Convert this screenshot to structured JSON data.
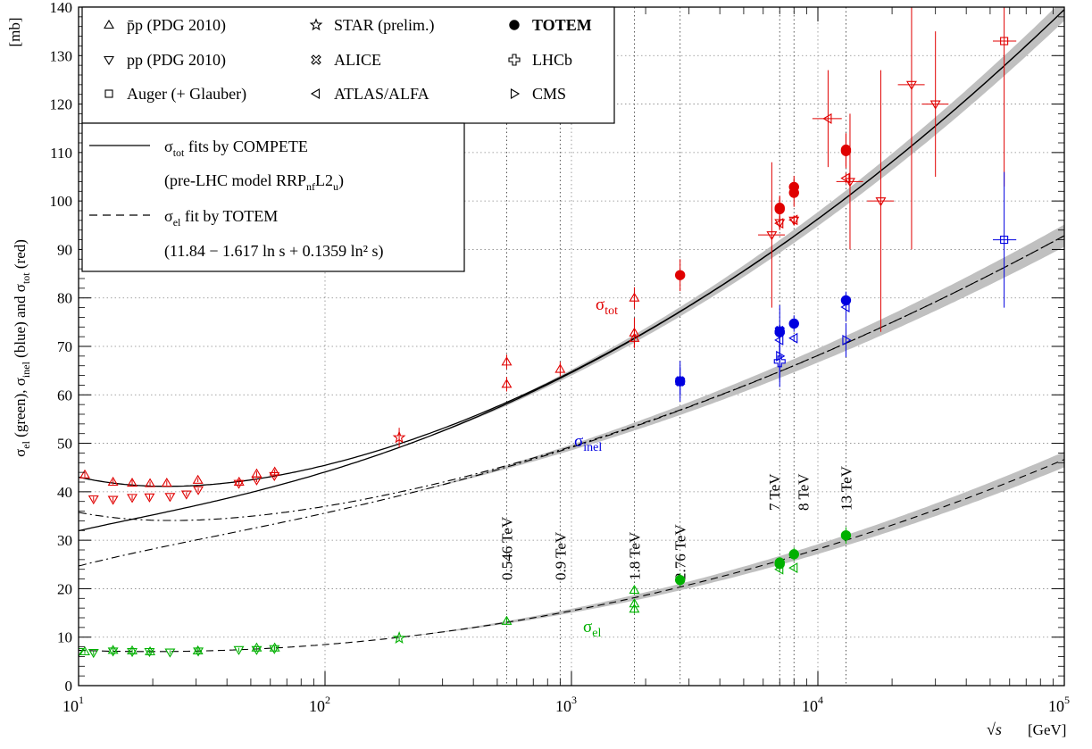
{
  "chart_data": {
    "type": "scatter",
    "x_scale": "log",
    "xlim": [
      10,
      100000
    ],
    "ylim": [
      0,
      140
    ],
    "grid": true,
    "legend_placement": "top-left",
    "x_unit_label": "[GeV]",
    "y_unit_label": "[mb]",
    "x_ticks": [
      {
        "value": 10,
        "base": "10",
        "exp": "1"
      },
      {
        "value": 100,
        "base": "10",
        "exp": "2"
      },
      {
        "value": 1000,
        "base": "10",
        "exp": "3"
      },
      {
        "value": 10000,
        "base": "10",
        "exp": "4"
      },
      {
        "value": 100000,
        "base": "10",
        "exp": "5"
      }
    ],
    "y_ticks": [
      0,
      10,
      20,
      30,
      40,
      50,
      60,
      70,
      80,
      90,
      100,
      110,
      120,
      130,
      140
    ],
    "energy_lines": [
      {
        "x": 546,
        "label": "0.546 TeV"
      },
      {
        "x": 900,
        "label": "0.9 TeV"
      },
      {
        "x": 1800,
        "label": "1.8 TeV"
      },
      {
        "x": 2760,
        "label": "2.76 TeV"
      },
      {
        "x": 7000,
        "label": "7 TeV"
      },
      {
        "x": 8000,
        "label": "8 TeV"
      },
      {
        "x": 13000,
        "label": "13 TeV"
      }
    ],
    "curve_labels": {
      "tot": "tot",
      "inel": "inel",
      "el": "el"
    },
    "legend_markers": [
      {
        "label": "p̄p (PDG 2010)",
        "marker": "triangle-up"
      },
      {
        "label": "pp (PDG 2010)",
        "marker": "triangle-down"
      },
      {
        "label": "Auger (+ Glauber)",
        "marker": "square"
      },
      {
        "label": "STAR (prelim.)",
        "marker": "star"
      },
      {
        "label": "ALICE",
        "marker": "cross-x"
      },
      {
        "label": "ATLAS/ALFA",
        "marker": "triangle-left"
      },
      {
        "label": "TOTEM",
        "marker": "filled-circle"
      },
      {
        "label": "LHCb",
        "marker": "cross-plus"
      },
      {
        "label": "CMS",
        "marker": "triangle-right"
      }
    ],
    "legend_fits": {
      "tot_fit": "fits by COMPETE",
      "tot_model": "(pre-LHC model RRP",
      "tot_model_sub": "nf",
      "tot_model_end": "L2",
      "tot_model_sub2": "u",
      "el_fit": "fit by TOTEM",
      "el_formula": "(11.84 − 1.617 ln s + 0.1359 ln² s)"
    },
    "colors": {
      "tot": "#e00000",
      "inel": "#0000e0",
      "el": "#00b000",
      "fit": "#000000",
      "band": "#c0c0c0"
    },
    "series": [
      {
        "name": "σtot TOTEM",
        "marker": "filled-circle",
        "color": "tot",
        "points": [
          [
            2760,
            84.7,
            3.3
          ],
          [
            7000,
            98.3,
            2.8
          ],
          [
            7000,
            98.6,
            2.2
          ],
          [
            8000,
            101.7,
            2.9
          ],
          [
            8000,
            102.9,
            2.3
          ],
          [
            13000,
            110.6,
            3.4
          ],
          [
            13000,
            110.3,
            3.5
          ]
        ]
      },
      {
        "name": "σtot p̄p",
        "marker": "triangle-up",
        "color": "tot",
        "points": [
          [
            10.6,
            43.5,
            0.5
          ],
          [
            13.8,
            42.0,
            0.5
          ],
          [
            16.5,
            41.8,
            0.6
          ],
          [
            19.5,
            41.7,
            0.4
          ],
          [
            22.8,
            41.8,
            0.5
          ],
          [
            30.5,
            42.4,
            0.4
          ],
          [
            44.8,
            42.0,
            0.5
          ],
          [
            52.8,
            43.7,
            0.5
          ],
          [
            62.5,
            44.1,
            0.5
          ],
          [
            546,
            66.8,
            1.5
          ],
          [
            546,
            62.2,
            1.5
          ],
          [
            900,
            65.3,
            1.5
          ],
          [
            1800,
            80.0,
            2.2
          ],
          [
            1800,
            72.8,
            3.1
          ],
          [
            1800,
            71.7,
            2.0
          ]
        ]
      },
      {
        "name": "σtot pp",
        "marker": "triangle-down",
        "color": "tot",
        "points": [
          [
            11.5,
            38.5,
            0.5
          ],
          [
            13.8,
            38.4,
            0.5
          ],
          [
            16.5,
            38.8,
            0.5
          ],
          [
            19.4,
            38.9,
            0.5
          ],
          [
            23.5,
            39.0,
            0.4
          ],
          [
            27.4,
            39.5,
            0.4
          ],
          [
            30.6,
            40.4,
            0.4
          ],
          [
            44.7,
            41.7,
            0.4
          ],
          [
            52.8,
            42.4,
            0.4
          ],
          [
            62.3,
            43.3,
            0.4
          ],
          [
            6500,
            93.0,
            15.0
          ],
          [
            7000,
            95.5,
            1.3
          ],
          [
            8000,
            96.0,
            1.0
          ],
          [
            13500,
            104.0,
            14.0
          ],
          [
            18000,
            100.0,
            27.0
          ],
          [
            24000,
            124.0,
            34.0
          ],
          [
            30000,
            120.0,
            15.0
          ]
        ]
      },
      {
        "name": "σtot Auger",
        "marker": "square",
        "color": "tot",
        "points": [
          [
            57000,
            133.0,
            30.0
          ]
        ]
      },
      {
        "name": "σtot STAR",
        "marker": "star",
        "color": "tot",
        "points": [
          [
            200,
            51.2,
            2.0
          ]
        ]
      },
      {
        "name": "σtot ATLAS/ALFA",
        "marker": "triangle-left",
        "color": "tot",
        "points": [
          [
            7000,
            95.4,
            1.4
          ],
          [
            8000,
            96.1,
            0.9
          ],
          [
            13000,
            104.7,
            1.1
          ],
          [
            11000,
            117.0,
            10.0
          ]
        ]
      },
      {
        "name": "σinel TOTEM",
        "marker": "filled-circle",
        "color": "inel",
        "points": [
          [
            2760,
            62.8,
            2.9
          ],
          [
            7000,
            73.1,
            1.3
          ],
          [
            7000,
            72.9,
            1.5
          ],
          [
            8000,
            74.7,
            1.7
          ],
          [
            13000,
            79.5,
            1.8
          ]
        ]
      },
      {
        "name": "σinel ALICE",
        "marker": "cross-x",
        "color": "inel",
        "points": [
          [
            2760,
            62.8,
            4.2
          ],
          [
            7000,
            73.2,
            5.3
          ]
        ]
      },
      {
        "name": "σinel ATLAS/ALFA",
        "marker": "triangle-left",
        "color": "inel",
        "points": [
          [
            7000,
            71.3,
            0.9
          ],
          [
            8000,
            71.7,
            0.7
          ],
          [
            13000,
            78.1,
            2.9
          ]
        ]
      },
      {
        "name": "σinel CMS",
        "marker": "triangle-right",
        "color": "inel",
        "points": [
          [
            7000,
            68.0,
            5.0
          ],
          [
            13000,
            71.3,
            3.5
          ]
        ]
      },
      {
        "name": "σinel LHCb",
        "marker": "cross-plus",
        "color": "inel",
        "points": [
          [
            7000,
            66.9,
            5.3
          ]
        ]
      },
      {
        "name": "σinel Auger",
        "marker": "square",
        "color": "inel",
        "points": [
          [
            57000,
            92.0,
            14.0
          ]
        ]
      },
      {
        "name": "σel TOTEM",
        "marker": "filled-circle",
        "color": "el",
        "points": [
          [
            2760,
            21.8,
            1.4
          ],
          [
            7000,
            25.1,
            1.1
          ],
          [
            7000,
            25.4,
            1.1
          ],
          [
            8000,
            27.1,
            1.4
          ],
          [
            13000,
            31.0,
            1.7
          ]
        ]
      },
      {
        "name": "σel p̄p",
        "marker": "triangle-up",
        "color": "el",
        "points": [
          [
            10.6,
            7.0,
            0.5
          ],
          [
            13.8,
            7.3,
            0.5
          ],
          [
            16.5,
            7.2,
            0.4
          ],
          [
            19.5,
            7.0,
            0.4
          ],
          [
            30.5,
            7.2,
            0.4
          ],
          [
            52.8,
            7.8,
            0.4
          ],
          [
            62.5,
            7.8,
            0.4
          ],
          [
            546,
            13.3,
            0.6
          ],
          [
            1800,
            19.7,
            0.9
          ],
          [
            1800,
            16.9,
            0.9
          ],
          [
            1800,
            15.8,
            0.9
          ]
        ]
      },
      {
        "name": "σel pp",
        "marker": "triangle-down",
        "color": "el",
        "points": [
          [
            10.0,
            7.0,
            0.6
          ],
          [
            11.5,
            6.8,
            0.5
          ],
          [
            13.8,
            7.1,
            0.5
          ],
          [
            16.5,
            7.0,
            0.4
          ],
          [
            19.4,
            7.0,
            0.4
          ],
          [
            23.5,
            6.9,
            0.4
          ],
          [
            30.6,
            7.1,
            0.4
          ],
          [
            44.7,
            7.4,
            0.4
          ],
          [
            52.8,
            7.4,
            0.4
          ],
          [
            62.3,
            7.6,
            0.4
          ]
        ]
      },
      {
        "name": "σel STAR",
        "marker": "star",
        "color": "el",
        "points": [
          [
            200,
            9.8,
            0.5
          ]
        ]
      },
      {
        "name": "σel ATLAS/ALFA",
        "marker": "triangle-left",
        "color": "el",
        "points": [
          [
            7000,
            24.0,
            0.5
          ],
          [
            8000,
            24.3,
            0.5
          ]
        ]
      }
    ]
  }
}
